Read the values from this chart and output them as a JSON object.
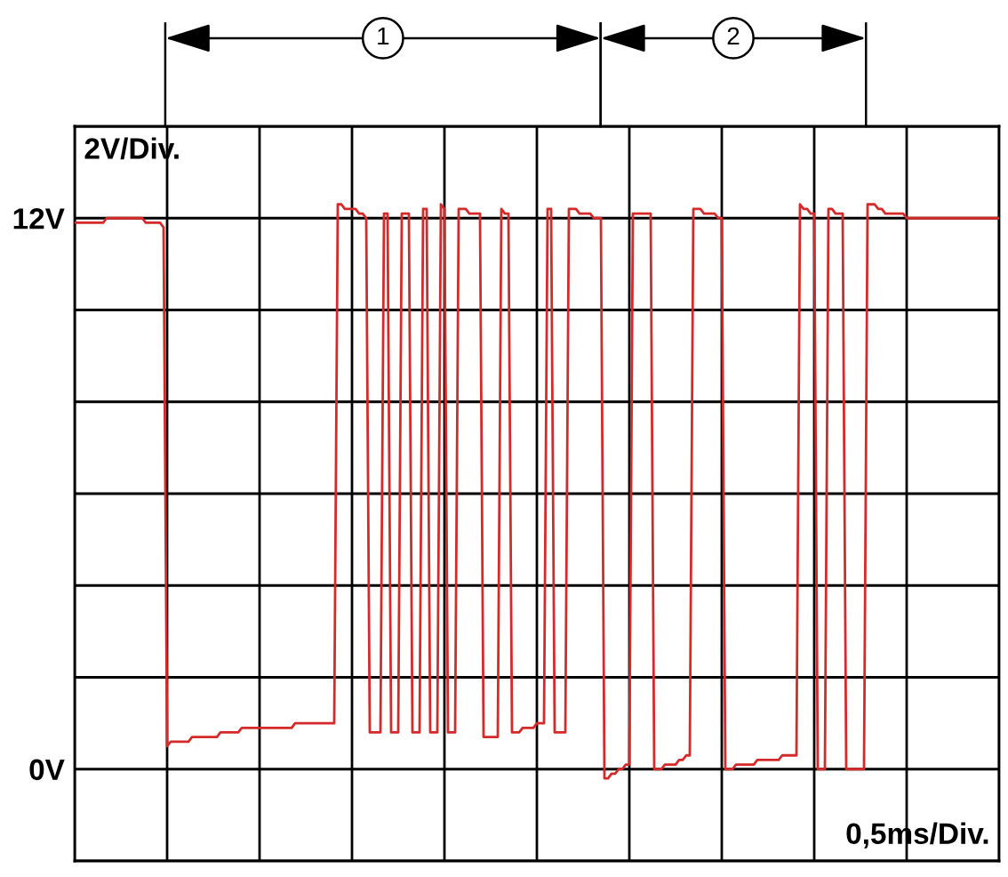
{
  "chart_data": {
    "type": "line",
    "categories": [
      null,
      null,
      null,
      null,
      null,
      null,
      null,
      null,
      null,
      null,
      null,
      null,
      null,
      null,
      null,
      null,
      null,
      null,
      null,
      null,
      null,
      null,
      null,
      null,
      null,
      null,
      null,
      null,
      null,
      null,
      null,
      null,
      null,
      null,
      null,
      null,
      null,
      null,
      null,
      null,
      null,
      null,
      null,
      null,
      null,
      null,
      null,
      null,
      null,
      null,
      null,
      null,
      null,
      null,
      null,
      null,
      null,
      null,
      null,
      null,
      null,
      null,
      null,
      null,
      null,
      null,
      null,
      null,
      null,
      null,
      null,
      null,
      null,
      null,
      null,
      null,
      null,
      null,
      null,
      null,
      null,
      null,
      null,
      null,
      null,
      null,
      null,
      null,
      null,
      null,
      null,
      null,
      null,
      null,
      null,
      null,
      null,
      null,
      null,
      null,
      null,
      null,
      null,
      null,
      null,
      null,
      null,
      null,
      null,
      null,
      null,
      null,
      null,
      null,
      null,
      null,
      null,
      null,
      null,
      null,
      null,
      null,
      null,
      null,
      null,
      null,
      null,
      null,
      null,
      null,
      null,
      null,
      null,
      null,
      null,
      null,
      null,
      null,
      null,
      null,
      null,
      null,
      null,
      null,
      null,
      null,
      null,
      null,
      null,
      null,
      null,
      null,
      null,
      null,
      null,
      null,
      null,
      null,
      null,
      null,
      null,
      null,
      null,
      null,
      null,
      null,
      null,
      null,
      null,
      null,
      null,
      null,
      null,
      null,
      null,
      null,
      null,
      null,
      null,
      null,
      null,
      null,
      null,
      null,
      null,
      null,
      null,
      null,
      null,
      null,
      null,
      null,
      null,
      null,
      null,
      null,
      null,
      null,
      null,
      null,
      null,
      null,
      null,
      null,
      null,
      null,
      null,
      null,
      null,
      null,
      null,
      null,
      null,
      null,
      null,
      null,
      null,
      null,
      null,
      null,
      null,
      null,
      null,
      null,
      null,
      null,
      null,
      null,
      null,
      null,
      null,
      null,
      null,
      null,
      null,
      null,
      null,
      null,
      null,
      null,
      null,
      null,
      null,
      null,
      null,
      null,
      null,
      null,
      null,
      null,
      null,
      null,
      null,
      null,
      null,
      null,
      null,
      null,
      null,
      null,
      null
    ],
    "series": [
      {
        "color": "#d42a2a",
        "values": [
          11.9,
          11.9,
          11.9,
          11.9,
          11.9,
          11.9,
          11.9,
          11.9,
          11.9,
          12.0,
          12.0,
          12.0,
          12.0,
          12.0,
          12.0,
          12.0,
          12.0,
          12.0,
          12.0,
          12.0,
          11.9,
          11.9,
          11.9,
          11.9,
          11.9,
          11.8,
          0.5,
          0.6,
          0.6,
          0.6,
          0.6,
          0.6,
          0.6,
          0.7,
          0.7,
          0.7,
          0.7,
          0.7,
          0.7,
          0.7,
          0.7,
          0.8,
          0.8,
          0.8,
          0.8,
          0.8,
          0.8,
          0.9,
          0.9,
          0.9,
          0.9,
          0.9,
          0.9,
          0.9,
          0.9,
          0.9,
          0.9,
          0.9,
          0.9,
          0.9,
          0.9,
          0.9,
          1.0,
          1.0,
          1.0,
          1.0,
          1.0,
          1.0,
          1.0,
          1.0,
          1.0,
          1.0,
          1.0,
          1.0,
          12.3,
          12.3,
          12.2,
          12.2,
          12.2,
          12.2,
          12.1,
          12.1,
          12.0,
          0.8,
          0.8,
          0.8,
          0.8,
          12.1,
          12.1,
          0.8,
          0.8,
          0.8,
          12.1,
          12.1,
          12.1,
          0.8,
          0.8,
          0.8,
          12.2,
          12.2,
          0.8,
          0.8,
          0.8,
          12.3,
          12.2,
          0.8,
          0.8,
          0.8,
          12.2,
          12.2,
          12.2,
          12.1,
          12.1,
          12.1,
          12.1,
          0.7,
          0.7,
          0.7,
          0.7,
          0.7,
          12.2,
          12.1,
          12.1,
          0.8,
          0.8,
          0.8,
          0.9,
          0.9,
          0.9,
          0.9,
          1.0,
          1.0,
          1.0,
          12.2,
          12.2,
          0.8,
          0.8,
          0.8,
          0.8,
          12.2,
          12.2,
          12.2,
          12.1,
          12.1,
          12.1,
          12.1,
          12.0,
          12.0,
          12.0,
          -0.2,
          -0.2,
          -0.1,
          -0.1,
          0.0,
          0.0,
          0.1,
          0.1,
          12.1,
          12.1,
          12.1,
          12.1,
          12.1,
          12.1,
          0.0,
          0.0,
          0.0,
          0.1,
          0.1,
          0.1,
          0.1,
          0.2,
          0.2,
          0.3,
          0.3,
          12.2,
          12.2,
          12.2,
          12.1,
          12.1,
          12.1,
          12.1,
          12.0,
          12.0,
          0.0,
          0.0,
          0.0,
          0.1,
          0.1,
          0.1,
          0.1,
          0.1,
          0.1,
          0.2,
          0.2,
          0.2,
          0.2,
          0.2,
          0.2,
          0.2,
          0.3,
          0.3,
          0.3,
          0.3,
          0.3,
          12.3,
          12.2,
          12.2,
          12.1,
          12.1,
          0.0,
          0.0,
          0.0,
          12.2,
          12.2,
          12.1,
          12.1,
          12.1,
          0.0,
          0.0,
          0.0,
          0.0,
          0.0,
          0.0,
          12.3,
          12.3,
          12.3,
          12.2,
          12.2,
          12.1,
          12.1,
          12.1,
          12.1,
          12.1,
          12.1,
          12.0,
          12.0,
          12.0,
          12.0,
          12.0,
          12.0,
          12.0,
          12.0,
          12.0,
          12.0,
          12.0,
          12.0,
          12.0,
          12.0,
          12.0,
          12.0,
          12.0,
          12.0,
          12.0,
          12.0,
          12.0,
          12.0,
          12.0,
          12.0,
          12.0,
          12.0,
          12.0
        ]
      }
    ],
    "ylim": [
      -2,
      14
    ],
    "yticks": [
      {
        "value": -2,
        "label": null
      },
      {
        "value": 0,
        "label": "0V"
      },
      {
        "value": 2,
        "label": null
      },
      {
        "value": 4,
        "label": null
      },
      {
        "value": 6,
        "label": null
      },
      {
        "value": 8,
        "label": null
      },
      {
        "value": 10,
        "label": null
      },
      {
        "value": 12,
        "label": "12V"
      },
      {
        "value": 14,
        "label": null
      }
    ],
    "tick_labels": "y",
    "grid": true,
    "annotations": [
      "2V/Div.",
      "0,5ms/Div.",
      "1",
      "2"
    ]
  }
}
